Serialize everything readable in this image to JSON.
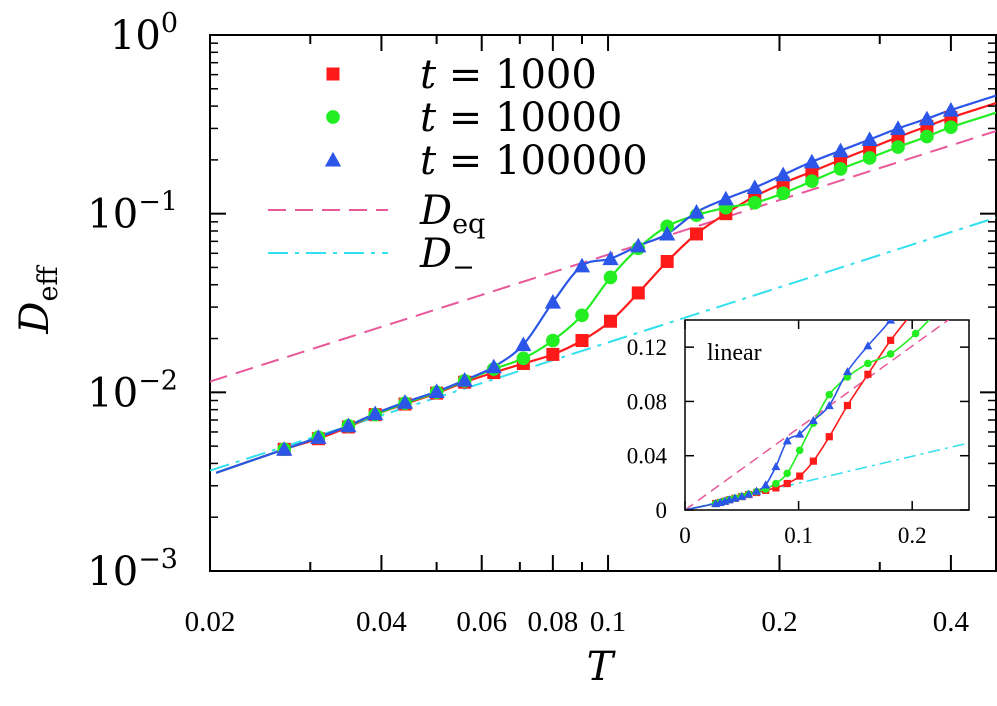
{
  "chart_data": {
    "type": "scatter",
    "xlabel": "T",
    "ylabel": "D",
    "ylabel_sub": "eff",
    "xscale": "log",
    "yscale": "log",
    "xlim": [
      0.02,
      0.48
    ],
    "ylim": [
      0.001,
      1.0
    ],
    "xticks": [
      {
        "v": 0.02,
        "label": "0.02"
      },
      {
        "v": 0.04,
        "label": "0.04"
      },
      {
        "v": 0.06,
        "label": "0.06"
      },
      {
        "v": 0.08,
        "label": "0.08"
      },
      {
        "v": 0.1,
        "label": "0.1"
      },
      {
        "v": 0.2,
        "label": "0.2"
      },
      {
        "v": 0.4,
        "label": "0.4"
      }
    ],
    "yticks": [
      {
        "v": 1.0,
        "base": "10",
        "exp": "0"
      },
      {
        "v": 0.1,
        "base": "10",
        "exp": "−1"
      },
      {
        "v": 0.01,
        "base": "10",
        "exp": "−2"
      },
      {
        "v": 0.001,
        "base": "10",
        "exp": "−3"
      }
    ],
    "legend_position": "top-left",
    "series": [
      {
        "name": "t = 1000",
        "legend_var": "t",
        "legend_rest": " = 1000",
        "color": "#ff1a1a",
        "marker": "square",
        "x": [
          0.027,
          0.031,
          0.035,
          0.039,
          0.044,
          0.05,
          0.056,
          0.063,
          0.071,
          0.08,
          0.09,
          0.101,
          0.113,
          0.127,
          0.143,
          0.161,
          0.181,
          0.203,
          0.228,
          0.256,
          0.288,
          0.323,
          0.363,
          0.4
        ],
        "y": [
          0.0048,
          0.0055,
          0.0064,
          0.0075,
          0.0086,
          0.0099,
          0.0114,
          0.0129,
          0.0145,
          0.0163,
          0.0195,
          0.025,
          0.036,
          0.054,
          0.077,
          0.1,
          0.125,
          0.148,
          0.172,
          0.2,
          0.232,
          0.268,
          0.308,
          0.345
        ]
      },
      {
        "name": "t = 10000",
        "legend_var": "t",
        "legend_rest": " = 10000",
        "color": "#22ee22",
        "marker": "circle",
        "x": [
          0.027,
          0.031,
          0.035,
          0.039,
          0.044,
          0.05,
          0.056,
          0.063,
          0.071,
          0.08,
          0.09,
          0.101,
          0.113,
          0.127,
          0.143,
          0.161,
          0.181,
          0.203,
          0.228,
          0.256,
          0.288,
          0.323,
          0.363,
          0.4
        ],
        "y": [
          0.0048,
          0.0056,
          0.0065,
          0.0075,
          0.0087,
          0.01,
          0.0116,
          0.0135,
          0.0155,
          0.0195,
          0.027,
          0.044,
          0.064,
          0.085,
          0.098,
          0.108,
          0.115,
          0.13,
          0.152,
          0.178,
          0.205,
          0.236,
          0.27,
          0.305
        ]
      },
      {
        "name": "t = 100000",
        "legend_var": "t",
        "legend_rest": " = 100000",
        "color": "#2b56e8",
        "marker": "triangle",
        "x": [
          0.027,
          0.031,
          0.035,
          0.039,
          0.044,
          0.05,
          0.056,
          0.063,
          0.071,
          0.08,
          0.09,
          0.101,
          0.113,
          0.127,
          0.143,
          0.161,
          0.181,
          0.203,
          0.228,
          0.256,
          0.288,
          0.323,
          0.363,
          0.4
        ],
        "y": [
          0.0048,
          0.0056,
          0.0065,
          0.0076,
          0.0088,
          0.0101,
          0.0117,
          0.0139,
          0.0185,
          0.032,
          0.051,
          0.056,
          0.066,
          0.077,
          0.102,
          0.121,
          0.14,
          0.165,
          0.195,
          0.225,
          0.26,
          0.3,
          0.34,
          0.38
        ]
      }
    ],
    "reference_lines": [
      {
        "name": "D_eq",
        "legend_var": "D",
        "legend_sub": "eq",
        "color": "#e8589a",
        "style": "dashed",
        "x": [
          0.02,
          0.48
        ],
        "y": [
          0.0115,
          0.29
        ]
      },
      {
        "name": "D_-",
        "legend_var": "D",
        "legend_sub": "−",
        "color": "#33e0ee",
        "style": "dashdot",
        "x": [
          0.02,
          0.48
        ],
        "y": [
          0.00365,
          0.095
        ]
      }
    ],
    "inset": {
      "title": "linear",
      "scale": "linear",
      "xlim": [
        0,
        0.25
      ],
      "ylim": [
        0,
        0.14
      ],
      "xticks": [
        {
          "v": 0,
          "label": "0"
        },
        {
          "v": 0.1,
          "label": "0.1"
        },
        {
          "v": 0.2,
          "label": "0.2"
        }
      ],
      "yticks": [
        {
          "v": 0,
          "label": "0"
        },
        {
          "v": 0.04,
          "label": "0.04"
        },
        {
          "v": 0.08,
          "label": "0.08"
        },
        {
          "v": 0.12,
          "label": "0.12"
        }
      ]
    }
  }
}
